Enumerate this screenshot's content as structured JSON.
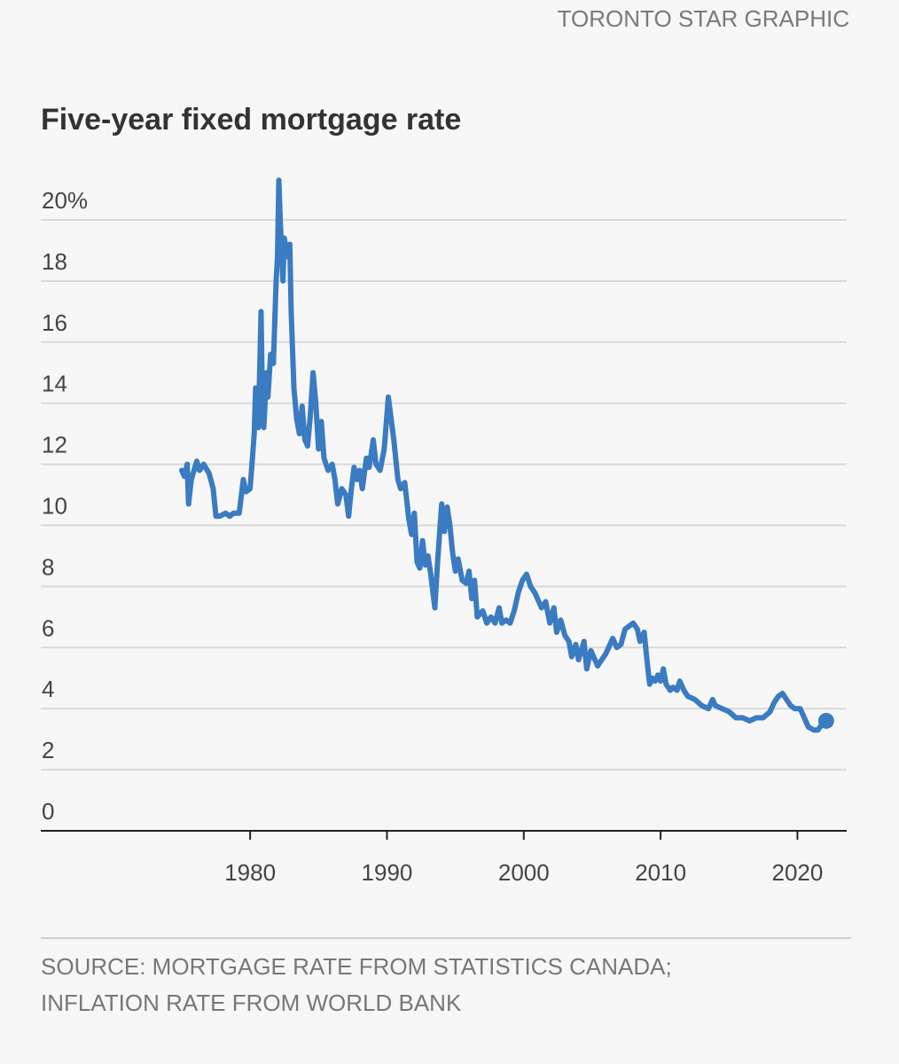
{
  "chart_data": {
    "type": "line",
    "credit": "TORONTO STAR GRAPHIC",
    "title": "Five-year fixed mortgage rate",
    "source": [
      "SOURCE: MORTGAGE RATE FROM STATISTICS CANADA;",
      "INFLATION RATE FROM WORLD BANK"
    ],
    "color": "#3a7bc2",
    "grid": true,
    "end_marker": true,
    "xlim": [
      1964.7,
      2023.6
    ],
    "xticks": [
      1980,
      1990,
      2000,
      2010,
      2020
    ],
    "ylim": [
      0,
      20
    ],
    "yticks": [
      0,
      2,
      4,
      6,
      8,
      10,
      12,
      14,
      16,
      18,
      {
        "value": 20,
        "label": "20%"
      }
    ],
    "x": [
      1975.0,
      1975.2,
      1975.4,
      1975.5,
      1975.7,
      1975.9,
      1976.1,
      1976.3,
      1976.6,
      1977.0,
      1977.3,
      1977.5,
      1977.8,
      1978.2,
      1978.5,
      1978.8,
      1979.2,
      1979.5,
      1979.7,
      1980.0,
      1980.3,
      1980.4,
      1980.6,
      1980.8,
      1980.9,
      1981.0,
      1981.2,
      1981.3,
      1981.5,
      1981.7,
      1981.9,
      1982.0,
      1982.1,
      1982.2,
      1982.4,
      1982.5,
      1982.7,
      1982.9,
      1983.0,
      1983.2,
      1983.4,
      1983.6,
      1983.8,
      1984.0,
      1984.2,
      1984.4,
      1984.6,
      1984.8,
      1985.0,
      1985.2,
      1985.4,
      1985.7,
      1986.0,
      1986.2,
      1986.4,
      1986.7,
      1987.0,
      1987.2,
      1987.4,
      1987.6,
      1987.8,
      1988.0,
      1988.2,
      1988.5,
      1988.7,
      1989.0,
      1989.2,
      1989.5,
      1989.8,
      1990.1,
      1990.3,
      1990.5,
      1990.8,
      1991.0,
      1991.3,
      1991.6,
      1991.8,
      1992.0,
      1992.2,
      1992.4,
      1992.6,
      1992.8,
      1993.0,
      1993.2,
      1993.5,
      1993.7,
      1994.0,
      1994.2,
      1994.4,
      1994.6,
      1994.8,
      1995.0,
      1995.2,
      1995.5,
      1995.8,
      1996.0,
      1996.2,
      1996.4,
      1996.6,
      1996.8,
      1997.0,
      1997.3,
      1997.6,
      1997.9,
      1998.2,
      1998.4,
      1998.7,
      1999.0,
      1999.3,
      1999.6,
      1999.9,
      2000.2,
      2000.5,
      2000.8,
      2001.0,
      2001.3,
      2001.6,
      2001.9,
      2002.2,
      2002.4,
      2002.7,
      2003.0,
      2003.3,
      2003.5,
      2003.8,
      2004.0,
      2004.2,
      2004.4,
      2004.6,
      2004.9,
      2005.2,
      2005.4,
      2005.7,
      2006.0,
      2006.3,
      2006.5,
      2006.8,
      2007.1,
      2007.4,
      2007.7,
      2008.0,
      2008.3,
      2008.5,
      2008.8,
      2009.0,
      2009.2,
      2009.4,
      2009.6,
      2009.8,
      2010.0,
      2010.2,
      2010.4,
      2010.7,
      2010.9,
      2011.2,
      2011.4,
      2011.7,
      2012.0,
      2012.5,
      2013.0,
      2013.5,
      2013.8,
      2014.0,
      2014.5,
      2015.0,
      2015.5,
      2016.0,
      2016.5,
      2017.0,
      2017.5,
      2018.0,
      2018.3,
      2018.6,
      2018.9,
      2019.2,
      2019.5,
      2019.8,
      2020.2,
      2020.5,
      2020.8,
      2021.2,
      2021.5,
      2021.8,
      2022.1
    ],
    "values": [
      11.8,
      11.6,
      12.0,
      10.7,
      11.5,
      11.8,
      12.1,
      11.8,
      12.0,
      11.7,
      11.2,
      10.3,
      10.3,
      10.4,
      10.3,
      10.4,
      10.4,
      11.5,
      11.1,
      11.2,
      13.0,
      14.5,
      13.2,
      17.0,
      14.0,
      13.2,
      15.0,
      14.2,
      15.6,
      15.3,
      18.0,
      18.8,
      21.3,
      20.0,
      18.0,
      19.4,
      18.8,
      19.2,
      17.0,
      14.5,
      13.5,
      13.0,
      13.9,
      12.8,
      12.6,
      13.6,
      15.0,
      14.0,
      12.5,
      13.4,
      12.2,
      11.8,
      12.0,
      11.5,
      10.7,
      11.2,
      11.0,
      10.3,
      11.2,
      11.9,
      11.5,
      11.8,
      11.2,
      12.2,
      11.9,
      12.8,
      12.0,
      11.8,
      12.5,
      14.2,
      13.5,
      12.8,
      11.5,
      11.2,
      11.4,
      10.2,
      9.7,
      10.4,
      8.8,
      8.6,
      9.5,
      8.7,
      9.0,
      8.4,
      7.3,
      8.8,
      10.7,
      9.8,
      10.6,
      10.0,
      9.1,
      8.5,
      8.9,
      8.2,
      8.1,
      8.5,
      7.6,
      8.2,
      7.0,
      7.1,
      7.2,
      6.8,
      7.0,
      6.8,
      7.3,
      6.8,
      6.9,
      6.8,
      7.2,
      7.8,
      8.2,
      8.4,
      8.0,
      7.8,
      7.6,
      7.3,
      7.5,
      6.8,
      7.3,
      6.5,
      6.9,
      6.4,
      6.2,
      5.7,
      6.1,
      5.6,
      5.9,
      6.2,
      5.3,
      5.9,
      5.6,
      5.4,
      5.6,
      5.8,
      6.1,
      6.3,
      6.0,
      6.1,
      6.6,
      6.7,
      6.8,
      6.6,
      6.2,
      6.5,
      5.6,
      4.8,
      5.0,
      4.9,
      5.1,
      4.9,
      5.3,
      4.8,
      4.6,
      4.7,
      4.6,
      4.9,
      4.6,
      4.4,
      4.3,
      4.1,
      4.0,
      4.3,
      4.1,
      4.0,
      3.9,
      3.7,
      3.7,
      3.6,
      3.7,
      3.7,
      3.9,
      4.2,
      4.4,
      4.5,
      4.3,
      4.1,
      4.0,
      4.0,
      3.7,
      3.4,
      3.3,
      3.3,
      3.5,
      3.6
    ]
  }
}
